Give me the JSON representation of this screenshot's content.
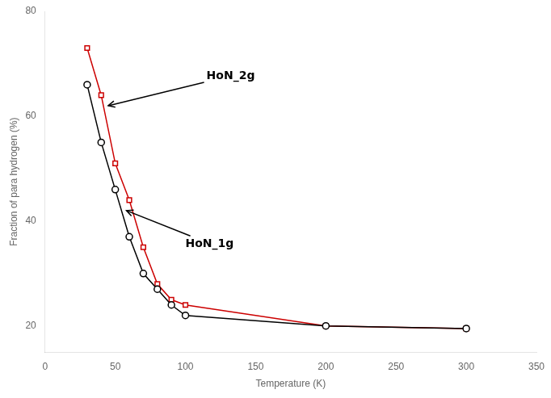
{
  "chart_data": {
    "type": "line",
    "xlabel": "Temperature (K)",
    "ylabel": "Fraction of para hydrogen (%)",
    "x": [
      30,
      40,
      50,
      60,
      70,
      80,
      90,
      100,
      200,
      300
    ],
    "series": [
      {
        "name": "HoN_1g",
        "color": "#000000",
        "marker": "circle",
        "values": [
          66,
          55,
          46,
          37,
          30,
          27,
          24,
          22,
          20,
          19.5
        ]
      },
      {
        "name": "HoN_2g",
        "color": "#cc0000",
        "marker": "square",
        "values": [
          73,
          64,
          51,
          44,
          35,
          28,
          25,
          24,
          20,
          19.5
        ]
      }
    ],
    "xlim": [
      0,
      350
    ],
    "xticks": [
      0,
      50,
      100,
      150,
      200,
      250,
      300,
      350
    ],
    "ylim": [
      15,
      80
    ],
    "yticks": [
      20,
      40,
      60,
      80
    ],
    "grid": false,
    "legend": false,
    "annotations": [
      {
        "text": "HoN_2g",
        "xy": [
          45,
          62
        ],
        "xytext": [
          115,
          67
        ]
      },
      {
        "text": "HoN_1g",
        "xy": [
          58,
          42
        ],
        "xytext": [
          100,
          35
        ]
      }
    ]
  }
}
